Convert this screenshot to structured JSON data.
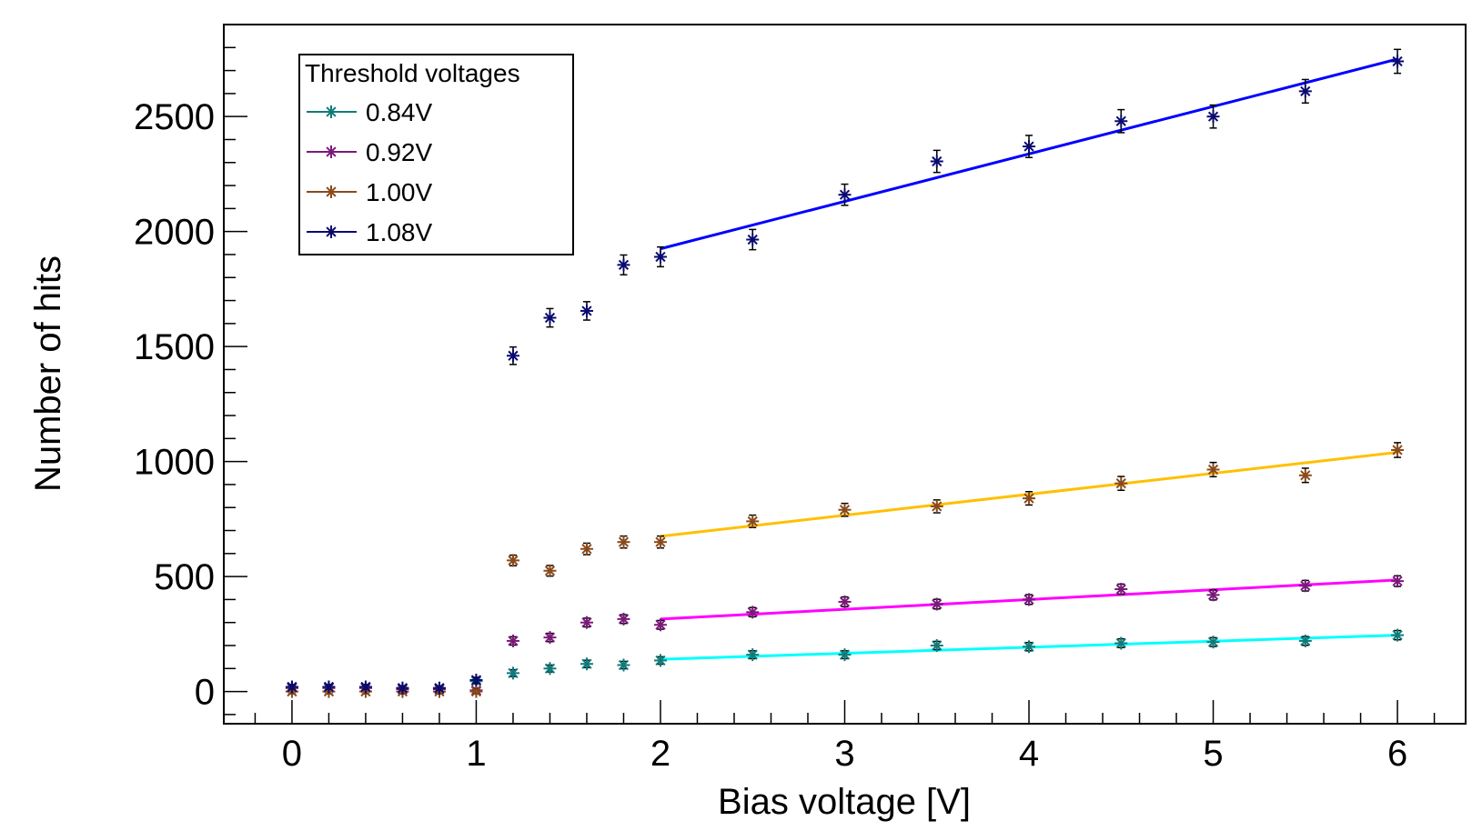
{
  "chart_data": {
    "type": "scatter",
    "title": "",
    "xlabel": "Bias voltage [V]",
    "ylabel": "Number of hits",
    "xlim": [
      -0.37,
      6.37
    ],
    "ylim": [
      -140,
      2900
    ],
    "x_ticks": [
      0,
      1,
      2,
      3,
      4,
      5,
      6
    ],
    "y_ticks": [
      0,
      500,
      1000,
      1500,
      2000,
      2500
    ],
    "x_tick_labels": [
      "0",
      "1",
      "2",
      "3",
      "4",
      "5",
      "6"
    ],
    "y_tick_labels": [
      "0",
      "500",
      "1000",
      "1500",
      "2000",
      "2500"
    ],
    "grid": false,
    "legend": {
      "title": "Threshold voltages",
      "placement": "top-left"
    },
    "series": [
      {
        "name": "0.84V",
        "marker_color": "#117a7a",
        "fit_color": "#00ffff",
        "x": [
          0,
          0.2,
          0.4,
          0.6,
          0.8,
          1.0,
          1.2,
          1.4,
          1.6,
          1.8,
          2.0,
          2.5,
          3.0,
          3.5,
          4.0,
          4.5,
          5.0,
          5.5,
          6.0
        ],
        "y": [
          20,
          20,
          20,
          15,
          15,
          45,
          80,
          100,
          120,
          115,
          135,
          160,
          160,
          200,
          195,
          210,
          215,
          220,
          245
        ],
        "err": [
          10,
          10,
          10,
          10,
          10,
          12,
          15,
          15,
          16,
          16,
          16,
          17,
          17,
          18,
          18,
          19,
          19,
          19,
          20
        ],
        "fit": {
          "x": [
            2,
            6
          ],
          "y": [
            140,
            245
          ]
        }
      },
      {
        "name": "0.92V",
        "marker_color": "#7a1a7a",
        "fit_color": "#ff00ff",
        "x": [
          0,
          0.2,
          0.4,
          0.6,
          0.8,
          1.0,
          1.2,
          1.4,
          1.6,
          1.8,
          2.0,
          2.5,
          3.0,
          3.5,
          4.0,
          4.5,
          5.0,
          5.5,
          6.0
        ],
        "y": [
          15,
          15,
          15,
          10,
          10,
          5,
          220,
          235,
          300,
          315,
          290,
          345,
          390,
          380,
          400,
          445,
          420,
          460,
          480
        ],
        "err": [
          10,
          10,
          10,
          10,
          10,
          10,
          18,
          18,
          19,
          19,
          19,
          20,
          21,
          21,
          21,
          22,
          22,
          23,
          23
        ],
        "fit": {
          "x": [
            2,
            6
          ],
          "y": [
            315,
            485
          ]
        }
      },
      {
        "name": "1.00V",
        "marker_color": "#8a4a1a",
        "fit_color": "#ffc000",
        "x": [
          0,
          0.2,
          0.4,
          0.6,
          0.8,
          1.0,
          1.2,
          1.4,
          1.6,
          1.8,
          2.0,
          2.5,
          3.0,
          3.5,
          4.0,
          4.5,
          5.0,
          5.5,
          6.0
        ],
        "y": [
          0,
          0,
          0,
          0,
          0,
          0,
          570,
          525,
          620,
          650,
          650,
          740,
          790,
          805,
          840,
          905,
          965,
          940,
          1050
        ],
        "err": [
          10,
          10,
          10,
          10,
          10,
          10,
          23,
          23,
          25,
          26,
          26,
          27,
          28,
          28,
          29,
          30,
          31,
          31,
          32
        ],
        "fit": {
          "x": [
            2,
            6
          ],
          "y": [
            675,
            1040
          ]
        }
      },
      {
        "name": "1.08V",
        "marker_color": "#0a0a6e",
        "fit_color": "#0000ff",
        "x": [
          0,
          0.2,
          0.4,
          0.6,
          0.8,
          1.0,
          1.2,
          1.4,
          1.6,
          1.8,
          2.0,
          2.5,
          3.0,
          3.5,
          4.0,
          4.5,
          5.0,
          5.5,
          6.0
        ],
        "y": [
          20,
          20,
          20,
          15,
          15,
          50,
          1460,
          1625,
          1655,
          1855,
          1890,
          1965,
          2160,
          2305,
          2370,
          2480,
          2500,
          2610,
          2740
        ],
        "err": [
          10,
          10,
          10,
          10,
          10,
          12,
          38,
          40,
          40,
          43,
          43,
          44,
          46,
          48,
          48,
          50,
          50,
          51,
          52
        ],
        "fit": {
          "x": [
            2,
            6
          ],
          "y": [
            1925,
            2750
          ]
        }
      }
    ]
  }
}
